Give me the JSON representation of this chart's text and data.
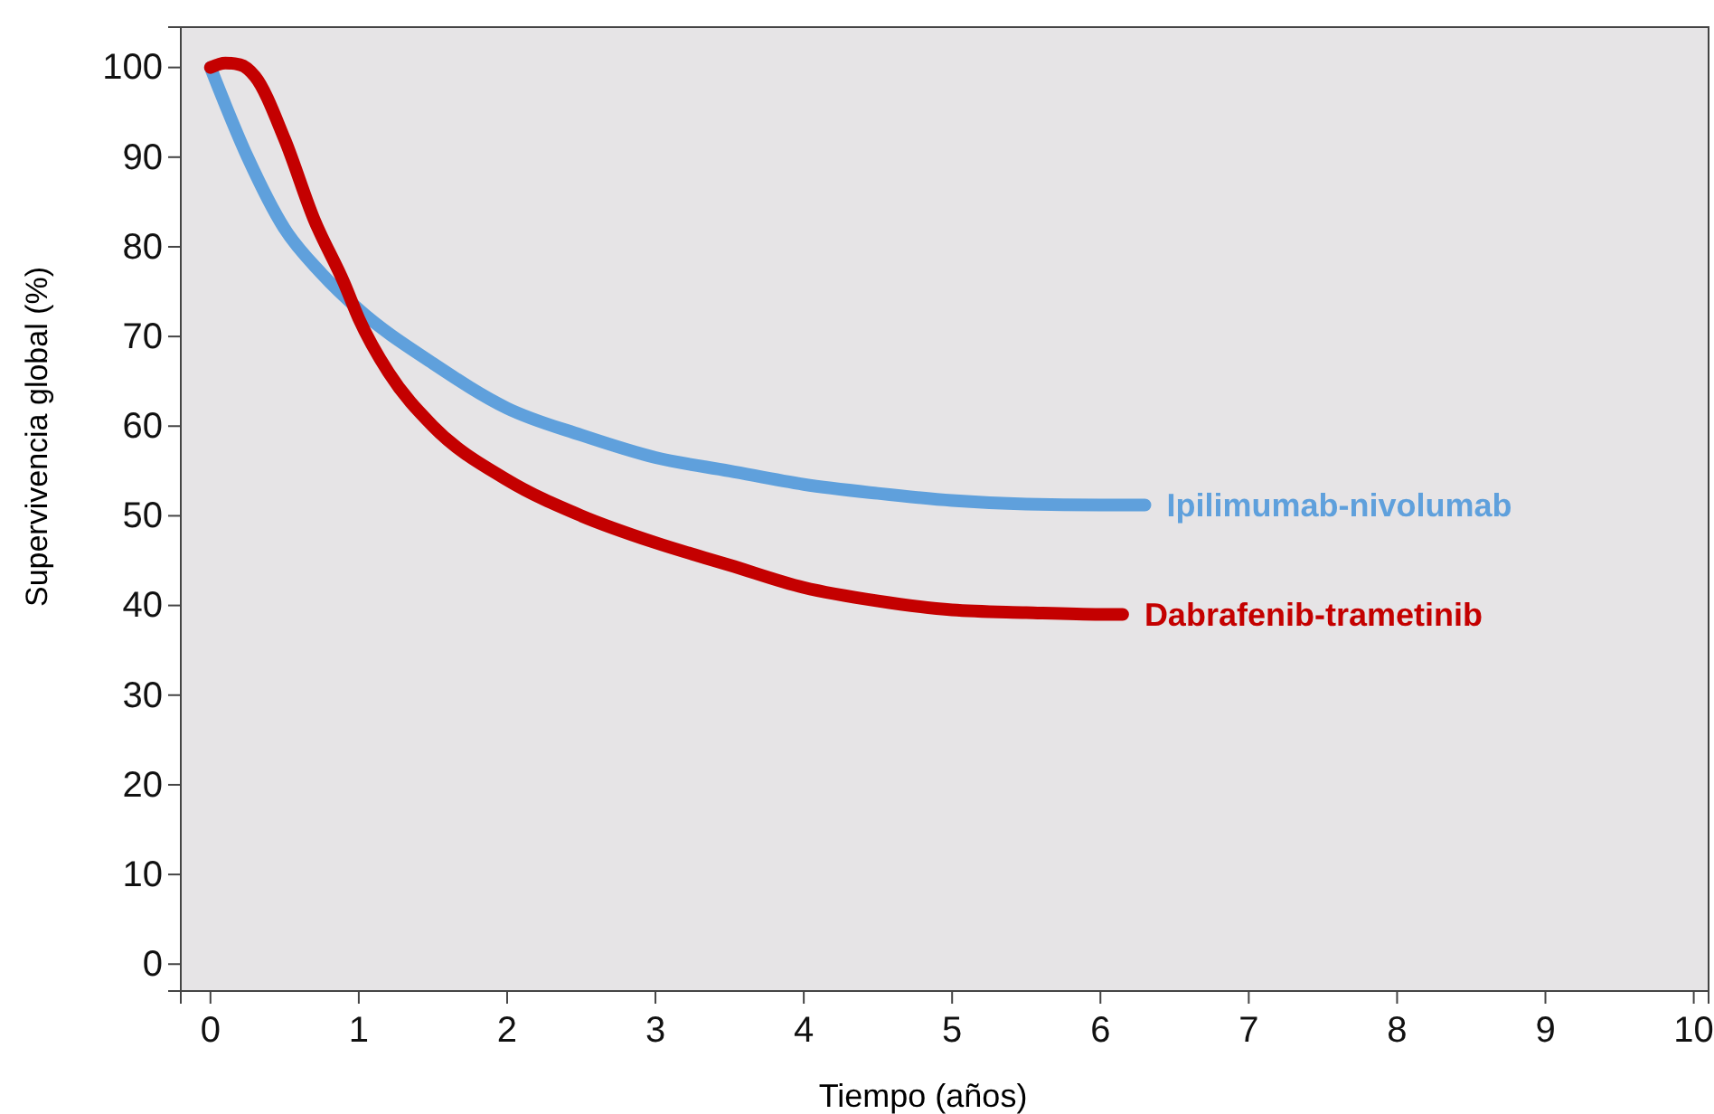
{
  "chart_data": {
    "type": "line",
    "xlabel": "Tiempo (años)",
    "ylabel": "Supervivencia global (%)",
    "xlim": [
      -0.2,
      10.1
    ],
    "ylim": [
      -3,
      104.5
    ],
    "xticks": [
      0,
      1,
      2,
      3,
      4,
      5,
      6,
      7,
      8,
      9,
      10
    ],
    "yticks": [
      0,
      10,
      20,
      30,
      40,
      50,
      60,
      70,
      80,
      90,
      100
    ],
    "grid": false,
    "marker": "none",
    "line_style": "solid",
    "series": [
      {
        "name": "Ipilimumab-nivolumab",
        "color": "#5fa0dc",
        "x": [
          0,
          0.25,
          0.5,
          0.75,
          1,
          1.5,
          2,
          2.5,
          3,
          3.5,
          4,
          4.5,
          5,
          5.5,
          6,
          6.3
        ],
        "values": [
          100,
          90,
          82,
          77,
          73,
          67,
          62,
          59,
          56.5,
          55,
          53.5,
          52.5,
          51.7,
          51.3,
          51.2,
          51.2
        ]
      },
      {
        "name": "Dabrafenib-trametinib",
        "color": "#c40000",
        "x": [
          0,
          0.1,
          0.2,
          0.3,
          0.5,
          0.7,
          0.9,
          1,
          1.2,
          1.5,
          2,
          2.5,
          3,
          3.5,
          4,
          4.5,
          5,
          5.5,
          6,
          6.15
        ],
        "values": [
          100,
          100.5,
          100.3,
          99,
          92,
          83,
          76,
          72,
          66,
          60,
          54,
          50,
          47,
          44.5,
          42,
          40.5,
          39.5,
          39.2,
          39,
          39
        ]
      }
    ]
  }
}
